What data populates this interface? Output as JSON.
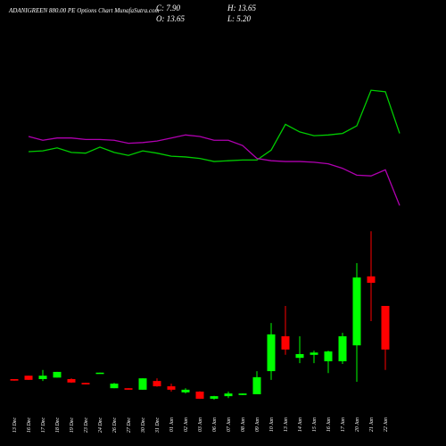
{
  "chart_data": {
    "type": "candlestick",
    "title": "ADANIGREEN 880.00 PE Options Chart MunafaSutra.com",
    "summary": [
      "C: 7.90",
      "H: 13.65",
      "O: 13.65",
      "L: 5.20"
    ],
    "categories": [
      "13 Dec",
      "16 Dec",
      "17 Dec",
      "18 Dec",
      "19 Dec",
      "23 Dec",
      "24 Dec",
      "26 Dec",
      "27 Dec",
      "30 Dec",
      "31 Dec",
      "01 Jan",
      "02 Jan",
      "03 Jan",
      "06 Jan",
      "07 Jan",
      "08 Jan",
      "09 Jan",
      "10 Jan",
      "13 Jan",
      "14 Jan",
      "15 Jan",
      "16 Jan",
      "17 Jan",
      "20 Jan",
      "21 Jan",
      "22 Jan"
    ],
    "open": [
      4.0,
      4.45,
      4.0,
      4.2,
      4.0,
      3.5,
      4.8,
      2.8,
      2.8,
      2.6,
      3.75,
      3.05,
      2.25,
      2.35,
      1.4,
      1.75,
      1.9,
      2.0,
      5.05,
      9.65,
      6.8,
      7.2,
      6.35,
      6.35,
      8.45,
      17.55,
      13.65
    ],
    "high": [
      4.0,
      4.45,
      5.2,
      4.95,
      4.1,
      3.5,
      4.85,
      3.5,
      2.8,
      4.1,
      4.1,
      3.4,
      2.8,
      2.4,
      1.8,
      2.35,
      2.1,
      5.05,
      11.4,
      13.65,
      9.65,
      7.75,
      7.75,
      10.1,
      19.3,
      23.5,
      13.65
    ],
    "low": [
      3.8,
      3.9,
      3.75,
      4.2,
      3.5,
      3.3,
      4.8,
      2.8,
      2.6,
      2.6,
      3.0,
      2.35,
      2.1,
      1.4,
      1.3,
      1.5,
      1.9,
      2.0,
      3.9,
      7.2,
      6.1,
      6.1,
      4.8,
      6.0,
      3.65,
      11.65,
      5.2
    ],
    "close": [
      3.8,
      3.9,
      4.45,
      4.95,
      3.55,
      3.3,
      4.85,
      3.4,
      2.6,
      4.1,
      3.05,
      2.6,
      2.6,
      1.4,
      1.75,
      2.1,
      2.1,
      4.25,
      9.9,
      7.9,
      7.3,
      7.5,
      7.65,
      9.65,
      17.4,
      16.7,
      7.9
    ],
    "up_color": "#00ff00",
    "down_color": "#ff0000",
    "series": [
      {
        "color": "#00cc00",
        "values": [
          34.0,
          34.1,
          34.5,
          33.9,
          33.8,
          34.6,
          33.9,
          33.5,
          34.1,
          33.8,
          33.4,
          33.3,
          33.1,
          32.7,
          32.8,
          32.9,
          32.9,
          34.2,
          37.6,
          36.6,
          36.1,
          36.2,
          36.4,
          37.4,
          42.1,
          41.9,
          36.4
        ]
      },
      {
        "color": "#b000b0",
        "values": [
          36.0,
          35.5,
          35.8,
          35.8,
          35.6,
          35.6,
          35.5,
          35.1,
          35.2,
          35.4,
          35.8,
          36.2,
          36.0,
          35.5,
          35.5,
          34.8,
          33.1,
          32.8,
          32.7,
          32.7,
          32.6,
          32.4,
          31.8,
          30.9,
          30.8,
          31.6,
          26.9
        ]
      }
    ],
    "ylim": [
      0,
      54
    ]
  }
}
